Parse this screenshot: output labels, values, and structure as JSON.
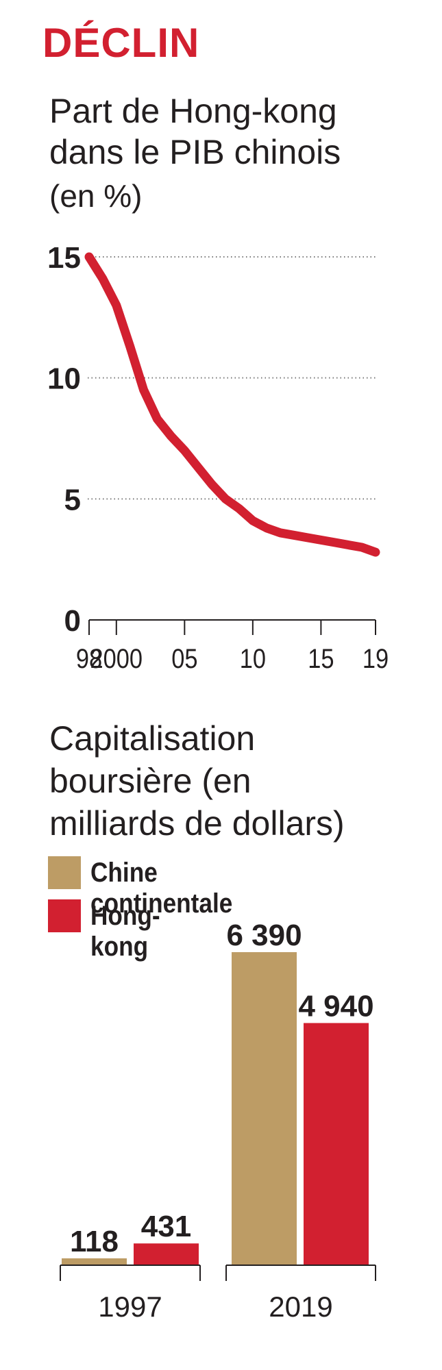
{
  "kicker": "DÉCLIN",
  "colors": {
    "accent": "#d22030",
    "tan": "#bd9c65",
    "text": "#231f20",
    "grid": "#777777"
  },
  "line_chart": {
    "title_lines": [
      "Part de Hong-kong",
      "dans le PIB chinois"
    ],
    "unit": "(en %)"
  },
  "bar_chart": {
    "title_lines": [
      "Capitalisation",
      "boursière (en",
      "milliards de dollars)"
    ]
  },
  "chart_data": [
    {
      "type": "line",
      "title": "Part de Hong-kong dans le PIB chinois",
      "ylabel": "(en %)",
      "x_tick_labels": [
        "98",
        "2000",
        "05",
        "10",
        "15",
        "19"
      ],
      "x_tick_values": [
        1998,
        2000,
        2005,
        2010,
        2015,
        2019
      ],
      "x_minor_ticks": [
        1998,
        2000,
        2005,
        2010,
        2015,
        2019
      ],
      "y_ticks": [
        0,
        5,
        10,
        15
      ],
      "xlim": [
        1998,
        2019
      ],
      "ylim": [
        0,
        15
      ],
      "grid": "dotted horizontal at 5, 10, 15",
      "series": [
        {
          "color": "#d22030",
          "x": [
            1998,
            1999,
            2000,
            2001,
            2002,
            2003,
            2004,
            2005,
            2006,
            2007,
            2008,
            2009,
            2010,
            2011,
            2012,
            2013,
            2014,
            2015,
            2016,
            2017,
            2018,
            2019
          ],
          "y": [
            15.0,
            14.1,
            13.0,
            11.3,
            9.5,
            8.3,
            7.6,
            7.0,
            6.3,
            5.6,
            5.0,
            4.6,
            4.1,
            3.8,
            3.6,
            3.5,
            3.4,
            3.3,
            3.2,
            3.1,
            3.0,
            2.8
          ]
        }
      ]
    },
    {
      "type": "bar",
      "title": "Capitalisation boursière (en milliards de dollars)",
      "categories": [
        "1997",
        "2019"
      ],
      "series": [
        {
          "name": "Chine continentale",
          "color": "#bd9c65",
          "values": [
            118,
            6390
          ],
          "labels": [
            "118",
            "6 390"
          ]
        },
        {
          "name": "Hong-kong",
          "color": "#d22030",
          "values": [
            431,
            4940
          ],
          "labels": [
            "431",
            "4 940"
          ]
        }
      ],
      "ylim": [
        0,
        6390
      ],
      "legend": "top-left"
    }
  ]
}
